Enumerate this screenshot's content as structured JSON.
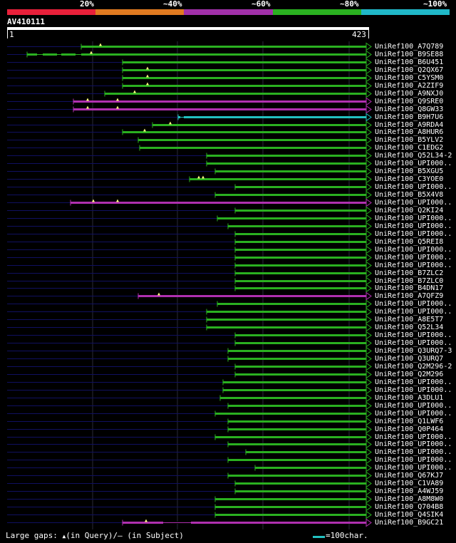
{
  "legend": {
    "labels": [
      "20%",
      "~40%",
      "~60%",
      "~80%",
      "~100%"
    ],
    "colors": [
      "#e8203a",
      "#e07a20",
      "#a030a8",
      "#2ab020",
      "#20b8c8"
    ]
  },
  "query": {
    "name": "AV410111",
    "start": "1",
    "end": "423"
  },
  "colors": {
    "green": "#2ab020",
    "magenta": "#b030b0",
    "cyan": "#22c0c0",
    "dim_line": "#101060",
    "gap": "#000000",
    "insert_marker": "#ffff80"
  },
  "hits": [
    {
      "name": "UniRef100_A7Q789",
      "color": "green",
      "start": 114,
      "markers": [
        141
      ],
      "gaps": []
    },
    {
      "name": "UniRef100_B9SE88",
      "color": "green",
      "start": 38,
      "markers": [
        128
      ],
      "gaps": [
        [
          52,
          60
        ],
        [
          80,
          86
        ],
        [
          106,
          114
        ]
      ]
    },
    {
      "name": "UniRef100_B6U451",
      "color": "green",
      "start": 172,
      "markers": [],
      "gaps": []
    },
    {
      "name": "UniRef100_Q2QX67",
      "color": "green",
      "start": 172,
      "markers": [
        207
      ],
      "gaps": []
    },
    {
      "name": "UniRef100_C5YSM0",
      "color": "green",
      "start": 172,
      "markers": [
        207
      ],
      "gaps": []
    },
    {
      "name": "UniRef100_A2ZIF9",
      "color": "green",
      "start": 172,
      "markers": [
        207
      ],
      "gaps": []
    },
    {
      "name": "UniRef100_A9NXJ0",
      "color": "green",
      "start": 147,
      "markers": [
        189
      ],
      "gaps": []
    },
    {
      "name": "UniRef100_Q9SRE0",
      "color": "magenta",
      "start": 103,
      "markers": [
        123,
        165
      ],
      "gaps": []
    },
    {
      "name": "UniRef100_Q8GW33",
      "color": "magenta",
      "start": 103,
      "markers": [
        123,
        165
      ],
      "gaps": []
    },
    {
      "name": "UniRef100_B9H7U6",
      "color": "cyan",
      "start": 250,
      "markers": [],
      "gaps": [
        [
          253,
          258
        ]
      ]
    },
    {
      "name": "UniRef100_A9RDA4",
      "color": "green",
      "start": 214,
      "markers": [
        239
      ],
      "gaps": []
    },
    {
      "name": "UniRef100_A8HUR6",
      "color": "green",
      "start": 172,
      "markers": [
        203
      ],
      "gaps": []
    },
    {
      "name": "UniRef100_B5YLV2",
      "color": "green",
      "start": 194,
      "markers": [],
      "gaps": []
    },
    {
      "name": "UniRef100_C1EDG2",
      "color": "green",
      "start": 196,
      "markers": [],
      "gaps": []
    },
    {
      "name": "UniRef100_Q52L34-2",
      "color": "green",
      "start": 290,
      "markers": [],
      "gaps": []
    },
    {
      "name": "UniRef100_UPI000..",
      "color": "green",
      "start": 290,
      "markers": [],
      "gaps": []
    },
    {
      "name": "UniRef100_B5XGU5",
      "color": "green",
      "start": 302,
      "markers": [],
      "gaps": []
    },
    {
      "name": "UniRef100_C3YOE0",
      "color": "green",
      "start": 266,
      "markers": [
        279,
        285
      ],
      "gaps": []
    },
    {
      "name": "UniRef100_UPI000..",
      "color": "green",
      "start": 330,
      "markers": [],
      "gaps": []
    },
    {
      "name": "UniRef100_B5X4V8",
      "color": "green",
      "start": 302,
      "markers": [],
      "gaps": []
    },
    {
      "name": "UniRef100_UPI000..",
      "color": "magenta",
      "start": 99,
      "markers": [
        131,
        165
      ],
      "gaps": []
    },
    {
      "name": "UniRef100_Q2KI24",
      "color": "green",
      "start": 330,
      "markers": [],
      "gaps": []
    },
    {
      "name": "UniRef100_UPI000..",
      "color": "green",
      "start": 305,
      "markers": [],
      "gaps": []
    },
    {
      "name": "UniRef100_UPI000..",
      "color": "green",
      "start": 320,
      "markers": [],
      "gaps": []
    },
    {
      "name": "UniRef100_UPI000..",
      "color": "green",
      "start": 330,
      "markers": [],
      "gaps": []
    },
    {
      "name": "UniRef100_Q5REI8",
      "color": "green",
      "start": 330,
      "markers": [],
      "gaps": []
    },
    {
      "name": "UniRef100_UPI000..",
      "color": "green",
      "start": 330,
      "markers": [],
      "gaps": []
    },
    {
      "name": "UniRef100_UPI000..",
      "color": "green",
      "start": 330,
      "markers": [],
      "gaps": []
    },
    {
      "name": "UniRef100_UPI000..",
      "color": "green",
      "start": 330,
      "markers": [],
      "gaps": []
    },
    {
      "name": "UniRef100_B7ZLC2",
      "color": "green",
      "start": 330,
      "markers": [],
      "gaps": []
    },
    {
      "name": "UniRef100_B7ZLC0",
      "color": "green",
      "start": 330,
      "markers": [],
      "gaps": []
    },
    {
      "name": "UniRef100_B4DN17",
      "color": "green",
      "start": 330,
      "markers": [],
      "gaps": []
    },
    {
      "name": "UniRef100_A7QFZ9",
      "color": "magenta",
      "start": 194,
      "markers": [
        223
      ],
      "gaps": []
    },
    {
      "name": "UniRef100_UPI000..",
      "color": "green",
      "start": 305,
      "markers": [],
      "gaps": []
    },
    {
      "name": "UniRef100_UPI000..",
      "color": "green",
      "start": 290,
      "markers": [],
      "gaps": []
    },
    {
      "name": "UniRef100_A8E5T7",
      "color": "green",
      "start": 290,
      "markers": [],
      "gaps": []
    },
    {
      "name": "UniRef100_Q52L34",
      "color": "green",
      "start": 290,
      "markers": [],
      "gaps": []
    },
    {
      "name": "UniRef100_UPI000..",
      "color": "green",
      "start": 330,
      "markers": [],
      "gaps": []
    },
    {
      "name": "UniRef100_UPI000..",
      "color": "green",
      "start": 330,
      "markers": [],
      "gaps": []
    },
    {
      "name": "UniRef100_Q3URQ7-3",
      "color": "green",
      "start": 320,
      "markers": [],
      "gaps": []
    },
    {
      "name": "UniRef100_Q3URQ7",
      "color": "green",
      "start": 320,
      "markers": [],
      "gaps": []
    },
    {
      "name": "UniRef100_Q2M296-2",
      "color": "green",
      "start": 330,
      "markers": [],
      "gaps": []
    },
    {
      "name": "UniRef100_Q2M296",
      "color": "green",
      "start": 330,
      "markers": [],
      "gaps": []
    },
    {
      "name": "UniRef100_UPI000..",
      "color": "green",
      "start": 313,
      "markers": [],
      "gaps": []
    },
    {
      "name": "UniRef100_UPI000..",
      "color": "green",
      "start": 313,
      "markers": [],
      "gaps": []
    },
    {
      "name": "UniRef100_A3DLU1",
      "color": "green",
      "start": 309,
      "markers": [],
      "gaps": []
    },
    {
      "name": "UniRef100_UPI000..",
      "color": "green",
      "start": 320,
      "markers": [],
      "gaps": []
    },
    {
      "name": "UniRef100_UPI000..",
      "color": "green",
      "start": 302,
      "markers": [],
      "gaps": []
    },
    {
      "name": "UniRef100_Q1LWF6",
      "color": "green",
      "start": 320,
      "markers": [],
      "gaps": []
    },
    {
      "name": "UniRef100_Q0P464",
      "color": "green",
      "start": 320,
      "markers": [],
      "gaps": []
    },
    {
      "name": "UniRef100_UPI000..",
      "color": "green",
      "start": 302,
      "markers": [],
      "gaps": []
    },
    {
      "name": "UniRef100_UPI000..",
      "color": "green",
      "start": 320,
      "markers": [],
      "gaps": []
    },
    {
      "name": "UniRef100_UPI000..",
      "color": "green",
      "start": 345,
      "markers": [],
      "gaps": []
    },
    {
      "name": "UniRef100_UPI000..",
      "color": "green",
      "start": 320,
      "markers": [],
      "gaps": []
    },
    {
      "name": "UniRef100_UPI000..",
      "color": "green",
      "start": 358,
      "markers": [],
      "gaps": []
    },
    {
      "name": "UniRef100_Q67KJ7",
      "color": "green",
      "start": 320,
      "markers": [],
      "gaps": []
    },
    {
      "name": "UniRef100_C1VA89",
      "color": "green",
      "start": 330,
      "markers": [],
      "gaps": []
    },
    {
      "name": "UniRef100_A4WJ59",
      "color": "green",
      "start": 330,
      "markers": [],
      "gaps": []
    },
    {
      "name": "UniRef100_A8M8W0",
      "color": "green",
      "start": 302,
      "markers": [],
      "gaps": []
    },
    {
      "name": "UniRef100_Q704B8",
      "color": "green",
      "start": 302,
      "markers": [],
      "gaps": []
    },
    {
      "name": "UniRef100_Q4SIK4",
      "color": "green",
      "start": 302,
      "markers": [],
      "gaps": []
    },
    {
      "name": "UniRef100_B9GC21",
      "color": "magenta",
      "start": 172,
      "markers": [
        205
      ],
      "gaps": [
        [
          229,
          268
        ]
      ]
    }
  ],
  "footer": {
    "gaps_label": "Large gaps:",
    "marker_glyph": "▲",
    "query_text": "(in Query)/",
    "dash_glyph": "–",
    "subject_text": " (in Subject)",
    "scale_text": "=100char."
  }
}
